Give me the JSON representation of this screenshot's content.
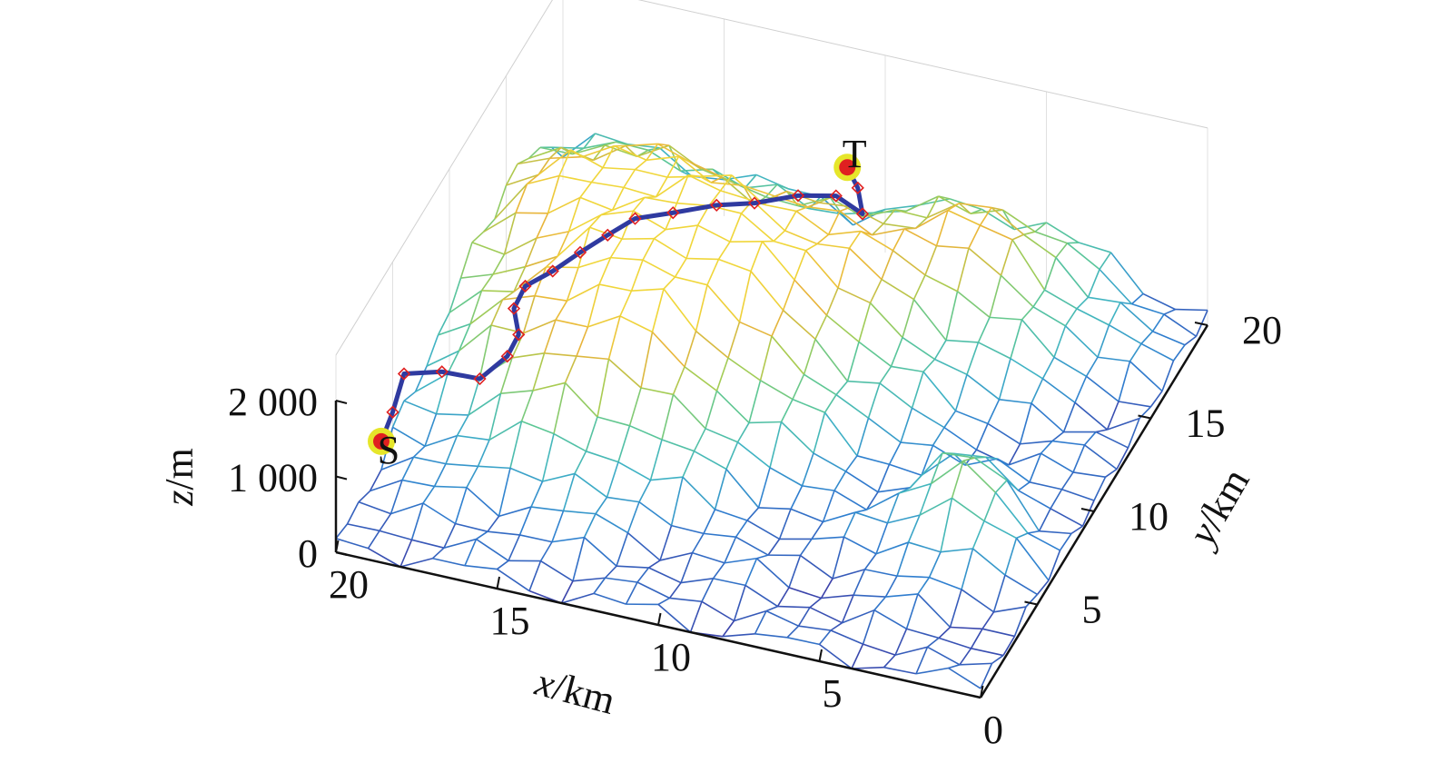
{
  "chart_data": {
    "type": "surface-3d",
    "x_axis": {
      "label_var": "x",
      "label_unit": "/km",
      "ticks": [
        "0",
        "5",
        "10",
        "15",
        "20"
      ],
      "range": [
        0,
        20
      ]
    },
    "y_axis": {
      "label_var": "y",
      "label_unit": "/km",
      "ticks": [
        "5",
        "10",
        "15",
        "20"
      ],
      "range": [
        0,
        20
      ]
    },
    "z_axis": {
      "label_var": "z",
      "label_unit": "/m",
      "ticks": [
        "0",
        "1 000",
        "2 000"
      ],
      "range": [
        0,
        2000
      ]
    },
    "surface": {
      "grid_x": [
        0,
        20
      ],
      "grid_y": [
        0,
        20
      ],
      "resolution": 20,
      "peaks": [
        {
          "x": 11.5,
          "y": 13.0,
          "height": 1500,
          "sx": 3.2,
          "sy": 3.5
        },
        {
          "x": 15.0,
          "y": 8.5,
          "height": 1150,
          "sx": 2.8,
          "sy": 3.0
        },
        {
          "x": 6.0,
          "y": 17.5,
          "height": 1150,
          "sx": 2.6,
          "sy": 2.6
        },
        {
          "x": 3.0,
          "y": 7.0,
          "height": 950,
          "sx": 1.2,
          "sy": 1.6
        },
        {
          "x": 16.5,
          "y": 16.0,
          "height": 850,
          "sx": 3.0,
          "sy": 2.8
        },
        {
          "x": 19.0,
          "y": 14.0,
          "height": 650,
          "sx": 2.5,
          "sy": 4.0
        }
      ],
      "colormap": [
        "#3b3fa8",
        "#2f7fd0",
        "#3fb3c4",
        "#5cc795",
        "#a6cc52",
        "#e8b43a",
        "#f0d63a"
      ]
    },
    "path": {
      "color": "#2f3aa0",
      "marker_color": "#e02020",
      "points": [
        {
          "x": 20.0,
          "y": 4.0,
          "z": 480
        },
        {
          "x": 20.0,
          "y": 5.0,
          "z": 620
        },
        {
          "x": 20.0,
          "y": 6.0,
          "z": 880
        },
        {
          "x": 19.0,
          "y": 6.5,
          "z": 880
        },
        {
          "x": 18.0,
          "y": 7.0,
          "z": 760
        },
        {
          "x": 17.5,
          "y": 8.0,
          "z": 860
        },
        {
          "x": 17.5,
          "y": 9.0,
          "z": 900
        },
        {
          "x": 18.0,
          "y": 10.0,
          "z": 950
        },
        {
          "x": 18.0,
          "y": 11.0,
          "z": 1000
        },
        {
          "x": 17.5,
          "y": 12.0,
          "z": 1000
        },
        {
          "x": 17.0,
          "y": 13.0,
          "z": 1050
        },
        {
          "x": 16.5,
          "y": 14.0,
          "z": 1080
        },
        {
          "x": 16.0,
          "y": 15.0,
          "z": 1100
        },
        {
          "x": 15.0,
          "y": 15.5,
          "z": 1150
        },
        {
          "x": 14.0,
          "y": 16.5,
          "z": 1100
        },
        {
          "x": 13.0,
          "y": 17.0,
          "z": 1100
        },
        {
          "x": 12.0,
          "y": 18.0,
          "z": 1050
        },
        {
          "x": 11.0,
          "y": 18.5,
          "z": 1020
        },
        {
          "x": 10.0,
          "y": 18.0,
          "z": 1000
        },
        {
          "x": 10.5,
          "y": 19.0,
          "z": 1050
        },
        {
          "x": 11.0,
          "y": 19.5,
          "z": 1150
        }
      ],
      "start_label": "S",
      "end_label": "T",
      "endpoint_outer_color": "#e6e62a",
      "endpoint_inner_color": "#e02020"
    }
  }
}
